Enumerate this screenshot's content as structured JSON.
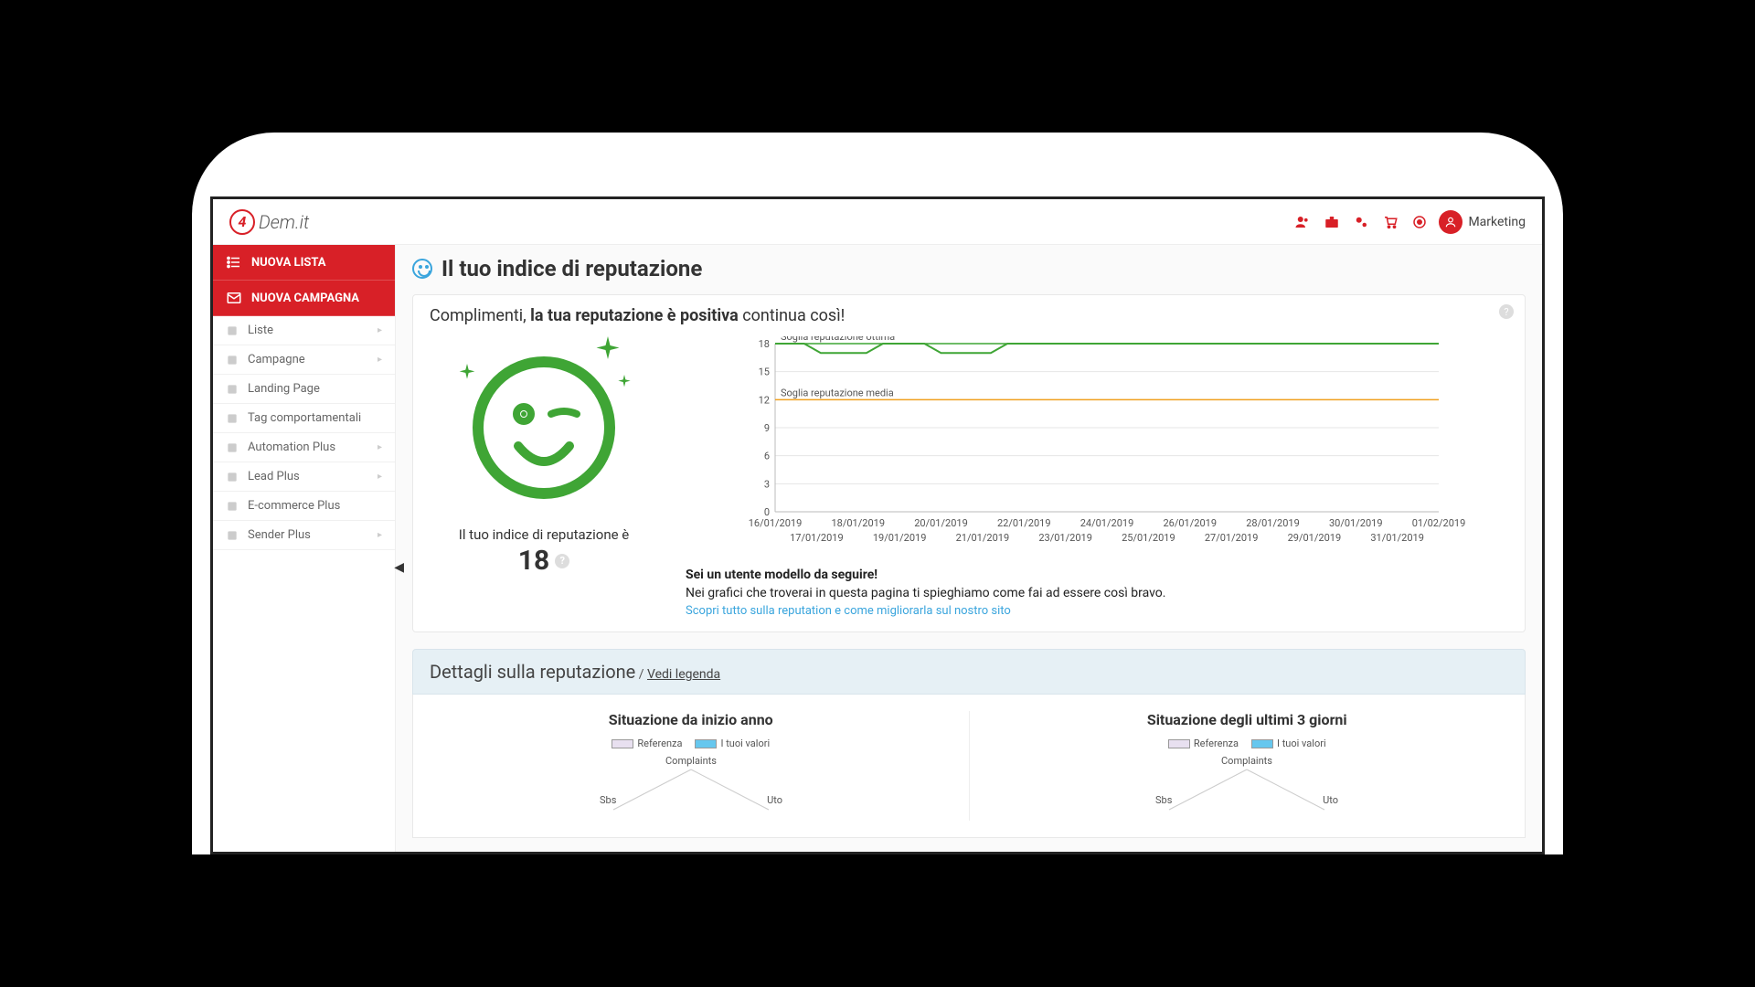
{
  "brand": {
    "badge": "4",
    "text": "Dem.it"
  },
  "user": {
    "name": "Marketing"
  },
  "topbar_icons": [
    "people",
    "briefcase",
    "gears",
    "cart",
    "target"
  ],
  "sidebar": {
    "primary": [
      {
        "label": "NUOVA LISTA",
        "icon": "list"
      },
      {
        "label": "NUOVA CAMPAGNA",
        "icon": "envelope"
      }
    ],
    "items": [
      {
        "label": "Liste",
        "expandable": true
      },
      {
        "label": "Campagne",
        "expandable": true
      },
      {
        "label": "Landing Page",
        "expandable": false
      },
      {
        "label": "Tag comportamentali",
        "expandable": false
      },
      {
        "label": "Automation Plus",
        "expandable": true
      },
      {
        "label": "Lead Plus",
        "expandable": true
      },
      {
        "label": "E-commerce Plus",
        "expandable": false
      },
      {
        "label": "Sender Plus",
        "expandable": true
      }
    ]
  },
  "page": {
    "title": "Il tuo indice di reputazione",
    "compliment_pre": "Complimenti, ",
    "compliment_bold": "la tua reputazione è positiva",
    "compliment_post": " continua così!",
    "face_label": "Il tuo indice di reputazione è",
    "rep_value": "18",
    "notes_bold": "Sei un utente modello da seguire!",
    "notes_line": "Nei grafici che troverai in questa pagina ti spieghiamo come fai ad essere così bravo.",
    "notes_link": "Scopri tutto sulla reputation e come migliorarla sul nostro sito"
  },
  "chart": {
    "type": "line",
    "ylim": [
      0,
      18
    ],
    "yticks": [
      0,
      3,
      6,
      9,
      12,
      15,
      18
    ],
    "x_labels_top": [
      "16/01/2019",
      "18/01/2019",
      "20/01/2019",
      "22/01/2019",
      "24/01/2019",
      "26/01/2019",
      "28/01/2019",
      "30/01/2019",
      "01/02/2019"
    ],
    "x_labels_bottom": [
      "17/01/2019",
      "19/01/2019",
      "21/01/2019",
      "23/01/2019",
      "25/01/2019",
      "27/01/2019",
      "29/01/2019",
      "31/01/2019"
    ],
    "thresholds": [
      {
        "label": "Soglia reputazione ottima",
        "value": 18,
        "color": "#3fa535"
      },
      {
        "label": "Soglia reputazione media",
        "value": 12,
        "color": "#f0a020"
      }
    ],
    "series": {
      "color": "#3fa535",
      "line_width": 2,
      "points": [
        {
          "x": 0,
          "y": 18
        },
        {
          "x": 0.7,
          "y": 18
        },
        {
          "x": 1.1,
          "y": 17
        },
        {
          "x": 2.2,
          "y": 17
        },
        {
          "x": 2.6,
          "y": 18
        },
        {
          "x": 3.6,
          "y": 18
        },
        {
          "x": 4.0,
          "y": 17
        },
        {
          "x": 5.2,
          "y": 17
        },
        {
          "x": 5.6,
          "y": 18
        },
        {
          "x": 16,
          "y": 18
        }
      ]
    },
    "grid_color": "#e6e6e6",
    "axis_color": "#bbb",
    "background": "#ffffff",
    "tick_font_size": 11
  },
  "details": {
    "header": "Dettagli sulla reputazione",
    "sep": " / ",
    "legend_link": "Vedi legenda",
    "cols": [
      {
        "title": "Situazione da inizio anno"
      },
      {
        "title": "Situazione degli ultimi 3 giorni"
      }
    ],
    "legend": {
      "a": "Referenza",
      "b": "I tuoi valori",
      "a_color": "#e8e0f0",
      "b_color": "#66c7ee"
    },
    "radar_axes": [
      "Complaints",
      "Uto",
      "Sbs"
    ]
  },
  "colors": {
    "brand_red": "#d82027",
    "link_blue": "#3aa5dd",
    "face_green": "#3fa535"
  }
}
